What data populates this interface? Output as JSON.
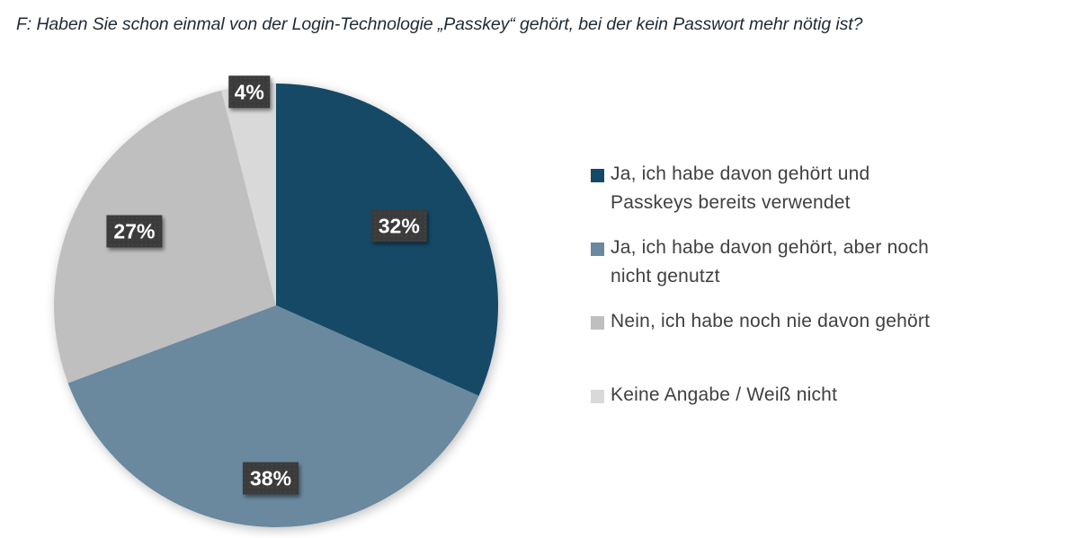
{
  "chart_data": {
    "type": "pie",
    "title": "F: Haben Sie schon einmal von der Login-Technologie „Passkey“ gehört, bei der kein Passwort mehr nötig ist?",
    "start_angle": "12 o'clock, clockwise",
    "legend_position": "right",
    "slices": [
      {
        "label": "Ja, ich habe davon gehört und Passkeys bereits verwendet",
        "value": 32,
        "display": "32%",
        "color": "#124a66"
      },
      {
        "label": "Ja, ich habe davon gehört, aber noch nicht genutzt",
        "value": 38,
        "display": "38%",
        "color": "#6b889e"
      },
      {
        "label": "Nein, ich habe noch nie davon gehört",
        "value": 27,
        "display": "27%",
        "color": "#bfbfbf"
      },
      {
        "label": "Keine Angabe / Weiß nicht",
        "value": 4,
        "display": "4%",
        "color": "#d9d9d9"
      }
    ],
    "data_label_style": {
      "background": "#3a3a3a",
      "text_color": "#ffffff"
    }
  },
  "legend": {
    "items": [
      {
        "lines": [
          "Ja, ich habe davon gehört und",
          "Passkeys bereits verwendet"
        ],
        "color": "#124a66"
      },
      {
        "lines": [
          "Ja, ich habe davon gehört, aber noch",
          "nicht genutzt"
        ],
        "color": "#6b889e"
      },
      {
        "lines": [
          "Nein, ich habe noch nie davon gehört"
        ],
        "color": "#bfbfbf"
      },
      {
        "lines": [
          "Keine Angabe / Weiß nicht"
        ],
        "color": "#d9d9d9"
      }
    ]
  }
}
